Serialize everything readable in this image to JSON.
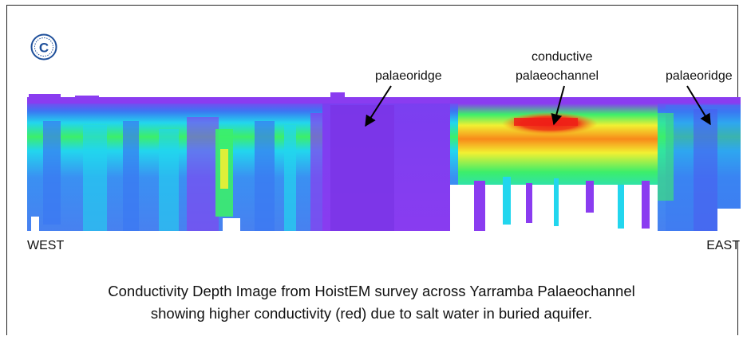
{
  "logo": {
    "icon": "company-logo-icon",
    "letter": "C"
  },
  "annotations": {
    "ridge_left": "palaeoridge",
    "channel_line1": "conductive",
    "channel_line2": "palaeochannel",
    "ridge_right": "palaeoridge"
  },
  "sides": {
    "west": "WEST",
    "east": "EAST"
  },
  "caption": {
    "line1": "Conductivity Depth Image from HoistEM survey across Yarramba Palaeochannel",
    "line2": "showing higher conductivity (red) due to salt water in buried aquifer."
  },
  "colors": {
    "purple": "#8a3cf0",
    "blue": "#3a78f2",
    "cyan": "#22d6ee",
    "green": "#3cee6a",
    "yellow": "#f2f032",
    "orange": "#f88a1a",
    "red": "#ef1e18"
  }
}
